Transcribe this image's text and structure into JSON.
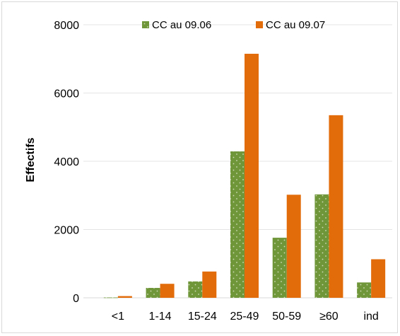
{
  "chart_data": {
    "type": "bar",
    "title": "",
    "xlabel": "",
    "ylabel": "Effectifs",
    "ylim": [
      0,
      8000
    ],
    "yticks": [
      0,
      2000,
      4000,
      6000,
      8000
    ],
    "grid": true,
    "legend_position": "top",
    "categories": [
      "<1",
      "1-14",
      "15-24",
      "25-49",
      "50-59",
      "≥60",
      "ind"
    ],
    "series": [
      {
        "name": "CC au 09.06",
        "color": "#70963a",
        "pattern": "dotted",
        "values": [
          10,
          290,
          480,
          4290,
          1760,
          3030,
          450
        ]
      },
      {
        "name": "CC au 09.07",
        "color": "#e36c0a",
        "pattern": "solid",
        "values": [
          50,
          410,
          770,
          7150,
          3020,
          5350,
          1130
        ]
      }
    ]
  }
}
